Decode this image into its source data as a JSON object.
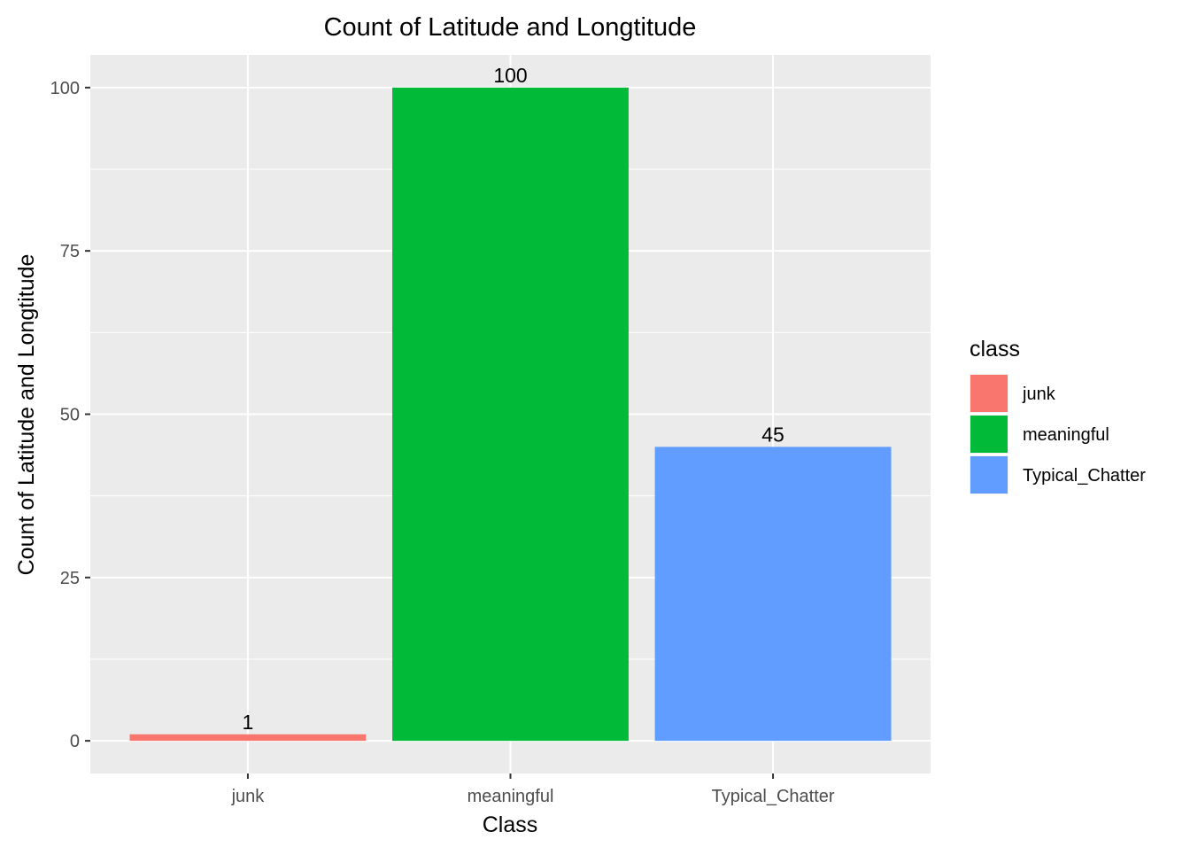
{
  "chart_data": {
    "type": "bar",
    "title": "Count of Latitude and Longtitude",
    "xlabel": "Class",
    "ylabel": "Count of Latitude and Longtitude",
    "categories": [
      "junk",
      "meaningful",
      "Typical_Chatter"
    ],
    "values": [
      1,
      100,
      45
    ],
    "data_labels": [
      "1",
      "100",
      "45"
    ],
    "colors": [
      "#F8766D",
      "#00BA38",
      "#619CFF"
    ],
    "ylim": [
      -5,
      105
    ],
    "yticks": [
      0,
      25,
      50,
      75,
      100
    ],
    "ytick_labels": [
      "0",
      "25",
      "50",
      "75",
      "100"
    ],
    "grid": true,
    "panel_background": "#EBEBEB",
    "legend": {
      "title": "class",
      "position": "right",
      "entries": [
        "junk",
        "meaningful",
        "Typical_Chatter"
      ]
    }
  }
}
